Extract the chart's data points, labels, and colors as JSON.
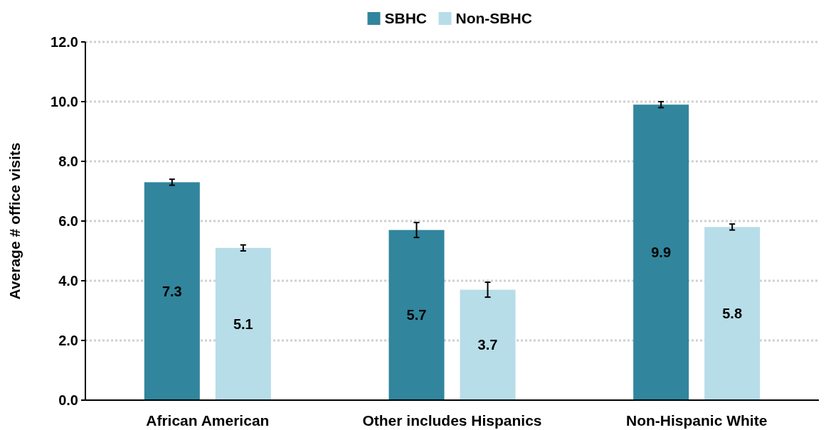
{
  "chart_data": {
    "type": "bar",
    "ylabel": "Average # office visits",
    "categories": [
      "African American",
      "Other includes Hispanics",
      "Non-Hispanic White"
    ],
    "series": [
      {
        "name": "SBHC",
        "color": "#31859c",
        "values": [
          7.3,
          5.7,
          9.9
        ],
        "errors": [
          0.1,
          0.25,
          0.1
        ]
      },
      {
        "name": "Non-SBHC",
        "color": "#b7dde8",
        "values": [
          5.1,
          3.7,
          5.8
        ],
        "errors": [
          0.1,
          0.25,
          0.1
        ]
      }
    ],
    "ylim": [
      0,
      12
    ],
    "yticks": [
      {
        "value": 0,
        "label": "0.0"
      },
      {
        "value": 2,
        "label": "2.0"
      },
      {
        "value": 4,
        "label": "4.0"
      },
      {
        "value": 6,
        "label": "6.0"
      },
      {
        "value": 8,
        "label": "8.0"
      },
      {
        "value": 10,
        "label": "10.0"
      },
      {
        "value": 12,
        "label": "12.0"
      }
    ],
    "grid": "y",
    "legend": "top",
    "data_labels": true
  }
}
